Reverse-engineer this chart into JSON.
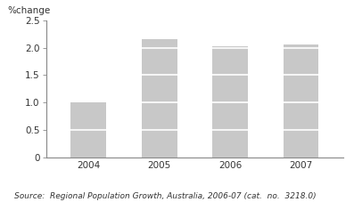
{
  "categories": [
    "2004",
    "2005",
    "2006",
    "2007"
  ],
  "bar_values": [
    1.0,
    2.15,
    2.02,
    2.05
  ],
  "segment_boundaries": [
    0.5,
    1.0,
    1.5,
    2.0
  ],
  "bar_color": "#c8c8c8",
  "divider_color": "#ffffff",
  "ylabel": "%change",
  "ylim": [
    0,
    2.5
  ],
  "yticks": [
    0,
    0.5,
    1.0,
    1.5,
    2.0,
    2.5
  ],
  "ytick_labels": [
    "0",
    "0.5",
    "1.0",
    "1.5",
    "2.0",
    "2.5"
  ],
  "source_text": "Source:  Regional Population Growth, Australia, 2006-07 (cat.  no.  3218.0)",
  "ylabel_fontsize": 7.5,
  "tick_fontsize": 7.5,
  "source_fontsize": 6.5,
  "bar_width": 0.5,
  "spine_color": "#888888",
  "tick_color": "#555555"
}
